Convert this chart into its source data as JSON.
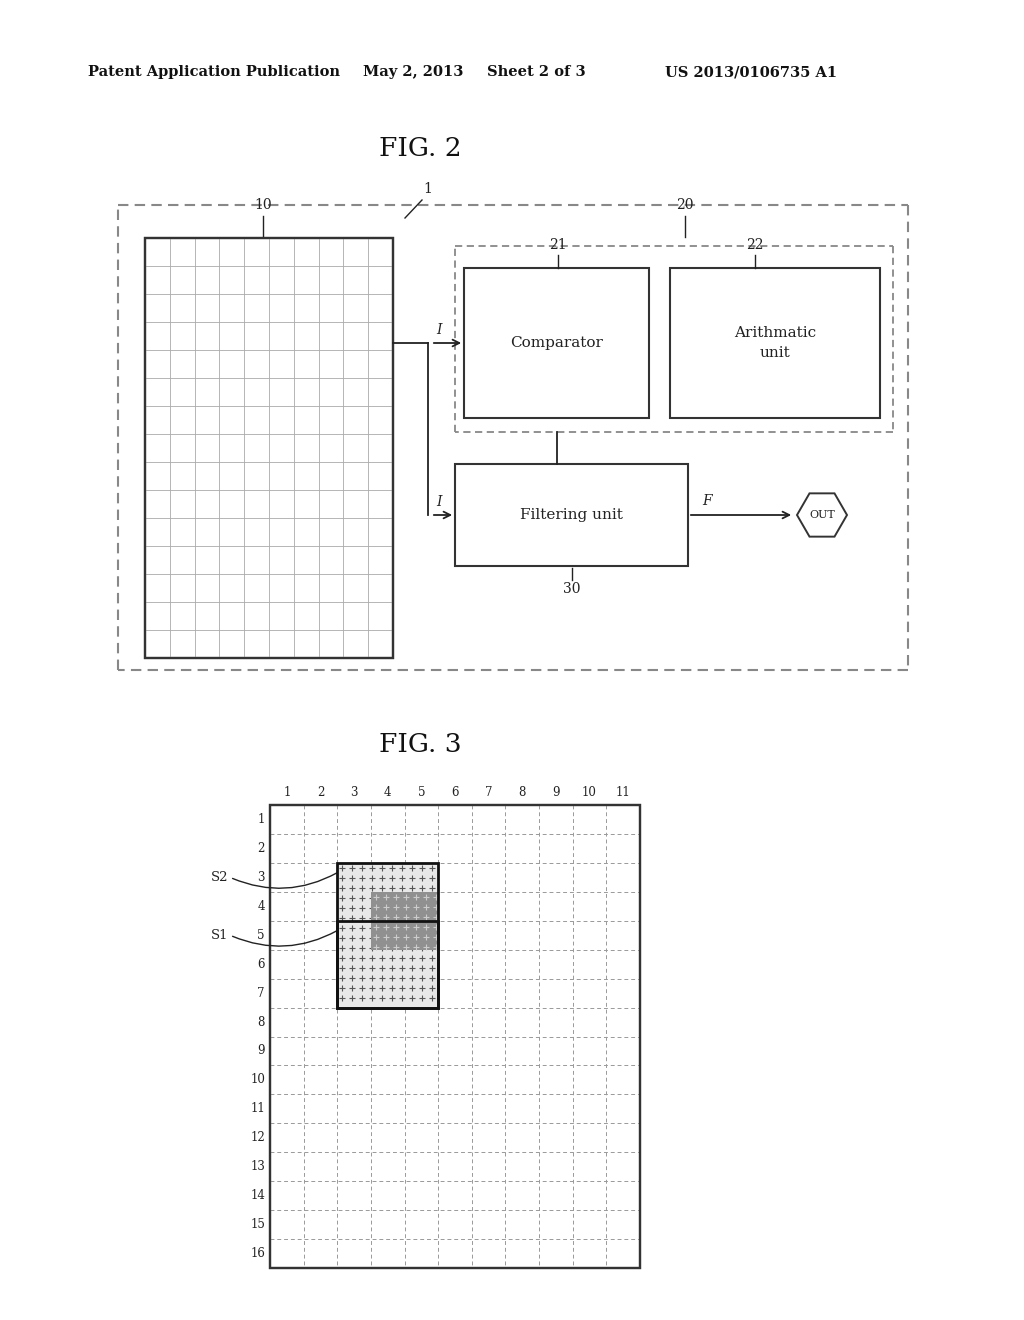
{
  "bg_color": "#ffffff",
  "header_text": "Patent Application Publication",
  "header_date": "May 2, 2013",
  "header_sheet": "Sheet 2 of 3",
  "header_patent": "US 2013/0106735 A1",
  "fig2_title": "FIG. 2",
  "fig3_title": "FIG. 3",
  "comparator_text": "Comparator",
  "arithmetic_text": "Arithmatic\nunit",
  "filtering_text": "Filtering unit",
  "label_10": "10",
  "label_1": "1",
  "label_20": "20",
  "label_21": "21",
  "label_22": "22",
  "label_30": "30",
  "label_I": "I",
  "label_F": "F",
  "label_OUT": "OUT",
  "s2_label": "S2",
  "s1_label": "S1",
  "fig3_col_labels": [
    "1",
    "2",
    "3",
    "4",
    "5",
    "6",
    "7",
    "8",
    "9",
    "10",
    "11"
  ],
  "fig3_row_labels": [
    "1",
    "2",
    "3",
    "4",
    "5",
    "6",
    "7",
    "8",
    "9",
    "10",
    "11",
    "12",
    "13",
    "14",
    "15",
    "16"
  ],
  "fig3_grid_cols": 11,
  "fig3_grid_rows": 16,
  "line_color": "#222222",
  "dash_color": "#555555",
  "grid_color_fig2": "#aaaaaa",
  "grid_color_fig3": "#888888"
}
